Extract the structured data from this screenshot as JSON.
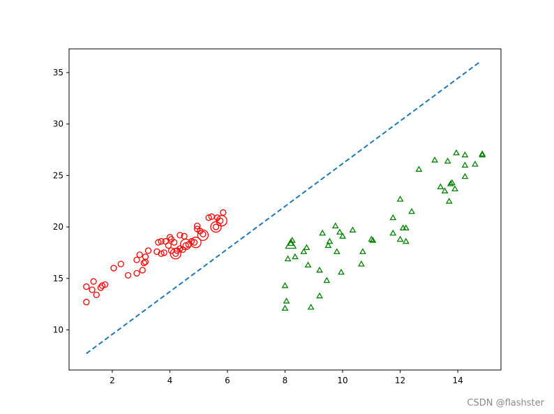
{
  "watermark": "CSDN @flashster",
  "chart_data": {
    "type": "scatter",
    "title": "",
    "xlabel": "",
    "ylabel": "",
    "xlim": [
      0.5,
      15.5
    ],
    "ylim": [
      6.1,
      37.3
    ],
    "xticks": [
      2,
      4,
      6,
      8,
      10,
      12,
      14
    ],
    "yticks": [
      10,
      15,
      20,
      25,
      30,
      35
    ],
    "grid": false,
    "colors": {
      "class_a": "#ff0000",
      "class_b": "#008000",
      "boundary": "#1f77b4"
    },
    "series": [
      {
        "marker": "circle",
        "color": "#ff0000",
        "points": [
          [
            1.1,
            12.7
          ],
          [
            1.1,
            14.2
          ],
          [
            1.3,
            13.9
          ],
          [
            1.35,
            14.7
          ],
          [
            1.45,
            13.4
          ],
          [
            1.6,
            14.1
          ],
          [
            1.65,
            14.3
          ],
          [
            1.75,
            14.4
          ],
          [
            2.05,
            16.0
          ],
          [
            2.3,
            16.4
          ],
          [
            2.55,
            15.3
          ],
          [
            2.85,
            15.5
          ],
          [
            2.85,
            16.8
          ],
          [
            2.95,
            17.3
          ],
          [
            3.05,
            15.8
          ],
          [
            3.1,
            16.5
          ],
          [
            3.15,
            16.6
          ],
          [
            3.15,
            17.1
          ],
          [
            3.25,
            17.7
          ],
          [
            3.55,
            17.6
          ],
          [
            3.6,
            18.5
          ],
          [
            3.7,
            17.4
          ],
          [
            3.7,
            18.6
          ],
          [
            3.8,
            17.5
          ],
          [
            3.85,
            18.6
          ],
          [
            3.95,
            18.2
          ],
          [
            4.0,
            19.0
          ],
          [
            4.05,
            18.8
          ],
          [
            4.05,
            17.7
          ],
          [
            4.15,
            18.5
          ],
          [
            4.2,
            17.4
          ],
          [
            4.25,
            17.7
          ],
          [
            4.35,
            19.2
          ],
          [
            4.35,
            17.9
          ],
          [
            4.45,
            17.8
          ],
          [
            4.5,
            19.1
          ],
          [
            4.55,
            18.2
          ],
          [
            4.65,
            18.3
          ],
          [
            4.75,
            18.6
          ],
          [
            4.85,
            18.5
          ],
          [
            4.95,
            19.8
          ],
          [
            4.95,
            20.1
          ],
          [
            5.05,
            19.6
          ],
          [
            5.15,
            19.3
          ],
          [
            5.35,
            20.9
          ],
          [
            5.45,
            21.0
          ],
          [
            5.6,
            20.0
          ],
          [
            5.65,
            20.9
          ],
          [
            5.75,
            20.6
          ],
          [
            5.85,
            21.4
          ]
        ],
        "large_points": [
          [
            4.2,
            17.4
          ],
          [
            4.55,
            18.3
          ],
          [
            4.9,
            18.5
          ],
          [
            5.15,
            19.2
          ],
          [
            5.6,
            20.0
          ],
          [
            5.8,
            20.6
          ]
        ]
      },
      {
        "marker": "triangle",
        "color": "#008000",
        "points": [
          [
            8.0,
            12.1
          ],
          [
            8.05,
            12.8
          ],
          [
            8.0,
            14.3
          ],
          [
            8.1,
            16.9
          ],
          [
            8.2,
            18.4
          ],
          [
            8.25,
            18.7
          ],
          [
            8.35,
            17.1
          ],
          [
            8.65,
            17.6
          ],
          [
            8.75,
            18.0
          ],
          [
            8.8,
            16.3
          ],
          [
            8.9,
            12.2
          ],
          [
            9.2,
            13.3
          ],
          [
            9.2,
            15.8
          ],
          [
            9.3,
            19.4
          ],
          [
            9.45,
            14.8
          ],
          [
            9.5,
            18.2
          ],
          [
            9.55,
            18.6
          ],
          [
            9.75,
            20.1
          ],
          [
            9.8,
            17.6
          ],
          [
            9.9,
            19.5
          ],
          [
            9.95,
            15.6
          ],
          [
            10.0,
            19.1
          ],
          [
            10.35,
            19.7
          ],
          [
            10.65,
            16.4
          ],
          [
            10.7,
            17.6
          ],
          [
            11.0,
            18.8
          ],
          [
            11.05,
            18.7
          ],
          [
            11.75,
            20.9
          ],
          [
            11.75,
            19.4
          ],
          [
            12.0,
            22.7
          ],
          [
            12.0,
            18.8
          ],
          [
            12.1,
            19.9
          ],
          [
            12.2,
            18.6
          ],
          [
            12.2,
            19.9
          ],
          [
            12.4,
            21.5
          ],
          [
            12.65,
            25.6
          ],
          [
            13.2,
            26.5
          ],
          [
            13.4,
            23.9
          ],
          [
            13.55,
            23.5
          ],
          [
            13.65,
            26.4
          ],
          [
            13.7,
            22.5
          ],
          [
            13.75,
            24.2
          ],
          [
            13.8,
            24.3
          ],
          [
            13.9,
            23.7
          ],
          [
            13.95,
            27.2
          ],
          [
            14.25,
            27.0
          ],
          [
            14.25,
            26.0
          ],
          [
            14.25,
            24.9
          ],
          [
            14.6,
            26.1
          ],
          [
            14.85,
            27.1
          ],
          [
            14.85,
            27.0
          ]
        ],
        "large_points": [
          [
            8.2,
            18.3
          ]
        ]
      }
    ],
    "boundary_line": {
      "style": "dashed",
      "color": "#1f77b4",
      "x": [
        1.1,
        14.8
      ],
      "y": [
        7.7,
        36.1
      ]
    }
  }
}
